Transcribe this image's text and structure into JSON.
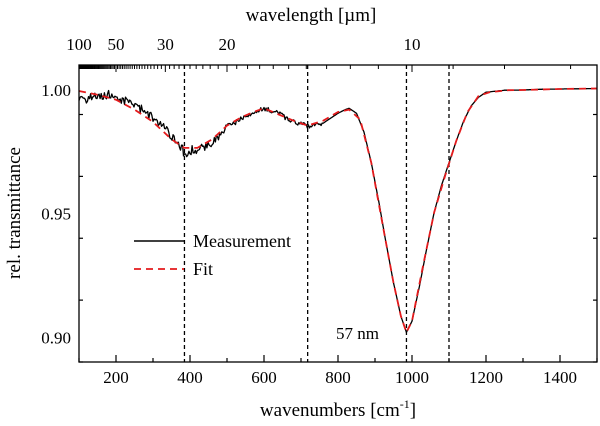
{
  "chart_data": {
    "type": "line",
    "title": "",
    "xlabel": "wavenumbers [cm",
    "xlabel_superscript": "-1",
    "xlabel_suffix": "]",
    "ylabel": "rel. transmittance",
    "top_xlabel": "wavelength [µm]",
    "xlim": [
      100,
      1500
    ],
    "ylim": [
      0.89,
      1.01
    ],
    "x_ticks": [
      200,
      400,
      600,
      800,
      1000,
      1200,
      1400
    ],
    "x_tick_labels": [
      "200",
      "400",
      "600",
      "800",
      "1000",
      "1200",
      "1400"
    ],
    "y_ticks": [
      0.9,
      0.95,
      1.0
    ],
    "y_tick_labels": [
      "0.90",
      "0.95",
      "1.00"
    ],
    "top_ticks_um": [
      100,
      50,
      30,
      20,
      10
    ],
    "top_tick_labels": [
      "100",
      "50",
      "30",
      "20",
      "10"
    ],
    "vlines": [
      385,
      718,
      985,
      1100
    ],
    "legend": {
      "position": "center-left",
      "entries": [
        {
          "label": "Measurement",
          "color": "#000000",
          "style": "solid"
        },
        {
          "label": "Fit",
          "color": "#e41a1c",
          "style": "dashed"
        }
      ]
    },
    "annotation": {
      "text": "57 nm",
      "x": 985,
      "y": 0.9
    },
    "series": [
      {
        "name": "Measurement",
        "color": "#000000",
        "style": "solid",
        "x": [
          100,
          120,
          140,
          160,
          180,
          200,
          220,
          240,
          260,
          280,
          300,
          320,
          340,
          360,
          380,
          385,
          400,
          420,
          440,
          460,
          480,
          500,
          520,
          540,
          560,
          580,
          600,
          620,
          640,
          660,
          680,
          700,
          720,
          740,
          760,
          780,
          800,
          820,
          830,
          850,
          870,
          890,
          910,
          930,
          950,
          970,
          985,
          1000,
          1020,
          1040,
          1060,
          1080,
          1100,
          1120,
          1140,
          1160,
          1180,
          1200,
          1250,
          1300,
          1350,
          1400,
          1450,
          1500
        ],
        "y": [
          0.9965,
          0.9955,
          0.9975,
          0.997,
          0.998,
          0.9968,
          0.996,
          0.9948,
          0.993,
          0.991,
          0.9885,
          0.986,
          0.983,
          0.979,
          0.976,
          0.973,
          0.9755,
          0.976,
          0.9765,
          0.9785,
          0.9815,
          0.9855,
          0.9865,
          0.9885,
          0.9895,
          0.991,
          0.9925,
          0.9915,
          0.9905,
          0.9885,
          0.987,
          0.9862,
          0.9852,
          0.9858,
          0.9865,
          0.9885,
          0.9905,
          0.992,
          0.9925,
          0.9905,
          0.983,
          0.9705,
          0.955,
          0.938,
          0.922,
          0.9085,
          0.902,
          0.9065,
          0.9205,
          0.936,
          0.9505,
          0.9615,
          0.9705,
          0.9795,
          0.9875,
          0.9935,
          0.997,
          0.999,
          0.9998,
          0.9999,
          1.0002,
          1.0003,
          1.0004,
          1.0005
        ]
      },
      {
        "name": "Fit",
        "color": "#e41a1c",
        "style": "dashed",
        "x": [
          100,
          150,
          200,
          250,
          300,
          350,
          385,
          420,
          460,
          500,
          540,
          580,
          600,
          640,
          680,
          718,
          760,
          800,
          830,
          860,
          890,
          920,
          950,
          970,
          985,
          1000,
          1030,
          1060,
          1090,
          1120,
          1150,
          1180,
          1210,
          1260,
          1300,
          1400,
          1500
        ],
        "y": [
          0.9995,
          0.998,
          0.996,
          0.992,
          0.987,
          0.98,
          0.9765,
          0.9765,
          0.98,
          0.9855,
          0.989,
          0.9915,
          0.9925,
          0.99,
          0.9875,
          0.9855,
          0.9875,
          0.991,
          0.992,
          0.988,
          0.9705,
          0.946,
          0.922,
          0.9085,
          0.902,
          0.9065,
          0.929,
          0.9505,
          0.9655,
          0.9795,
          0.991,
          0.9975,
          0.999,
          0.9998,
          0.9999,
          1.0003,
          1.0005
        ]
      }
    ]
  }
}
